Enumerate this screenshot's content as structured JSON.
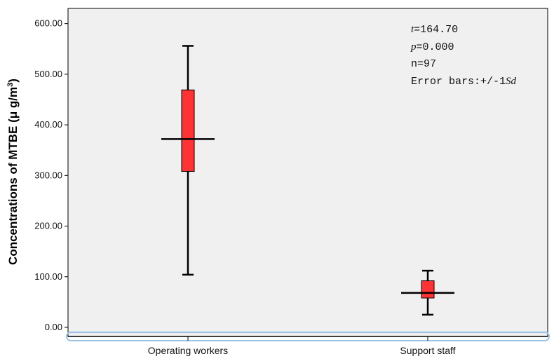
{
  "chart_data": {
    "type": "box",
    "categories": [
      "Operating workers",
      "Support staff"
    ],
    "series": [
      {
        "category": "Operating workers",
        "mean": 372,
        "box_low": 308,
        "box_high": 469,
        "whisker_low": 104,
        "whisker_high": 556
      },
      {
        "category": "Support staff",
        "mean": 68,
        "box_low": 58,
        "box_high": 92,
        "whisker_low": 25,
        "whisker_high": 112
      }
    ],
    "ylabel_main": "Concentrations of MTBE (",
    "ylabel_unit": "μ g/m",
    "ylabel_sup": "3",
    "ylabel_close": ")",
    "yticks": [
      "0.00",
      "100.00",
      "200.00",
      "300.00",
      "400.00",
      "500.00",
      "600.00"
    ],
    "ylim": [
      -18,
      630
    ],
    "box_color": "#ff3333",
    "plot_bg": "#f0f0f0",
    "annotation": {
      "t_sym": "t",
      "t_val": "=164.70",
      "p_sym": "p",
      "p_val": "=0.000",
      "n_line": "n=97",
      "err_prefix": "Error bars:+/-1",
      "err_sym": "Sd"
    }
  }
}
